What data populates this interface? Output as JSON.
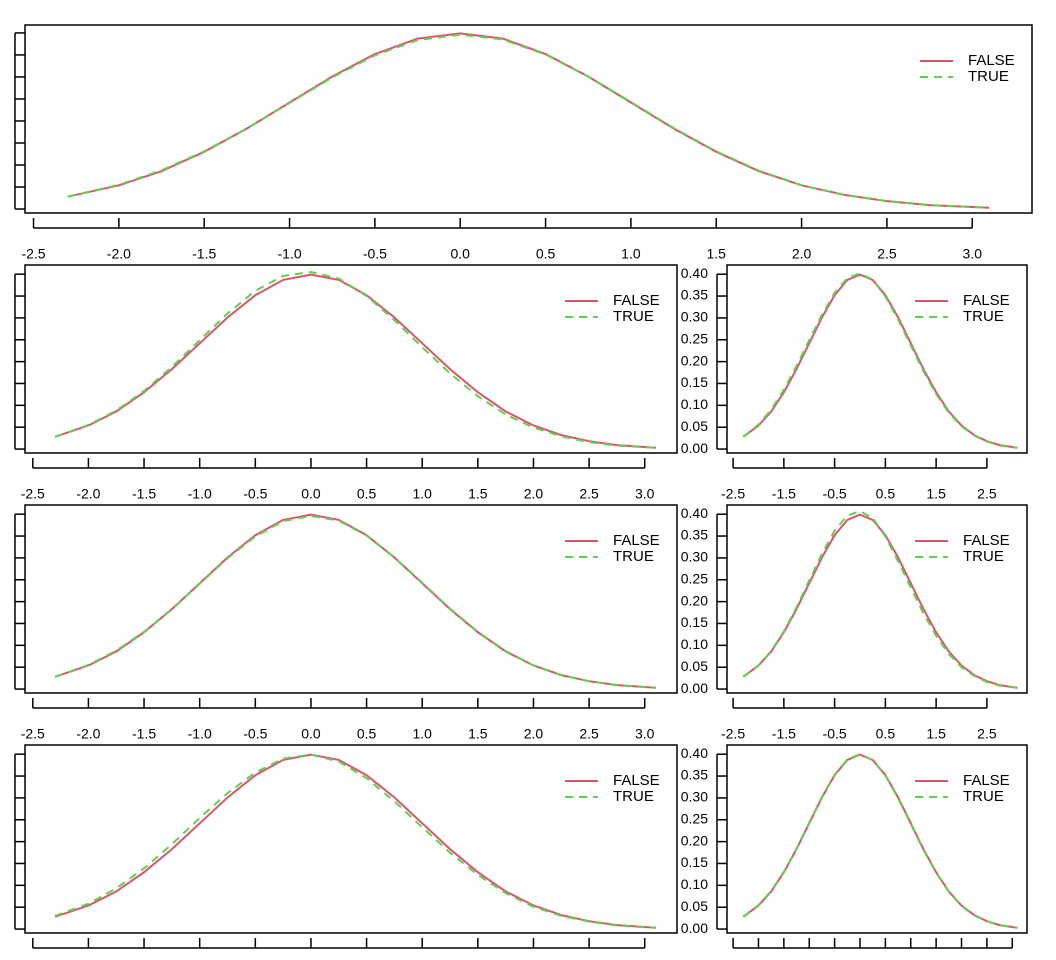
{
  "chart_data": [
    {
      "type": "line",
      "legend": "topright",
      "xlim": [
        -2.55,
        3.35
      ],
      "ylim": [
        -0.009,
        0.418
      ],
      "xticks": [
        -2.5,
        {
          "value": -2,
          "label": "-2.0"
        },
        -1.5,
        {
          "value": -1,
          "label": "-1.0"
        },
        -0.5,
        {
          "value": 0,
          "label": "0.0"
        },
        0.5,
        {
          "value": 1,
          "label": "1.0"
        },
        1.5,
        {
          "value": 2,
          "label": "2.0"
        },
        2.5,
        {
          "value": 3,
          "label": "3.0"
        }
      ],
      "yticks": [
        0,
        0.05,
        0.1,
        0.15,
        0.2,
        0.25,
        0.3,
        0.35,
        0.4
      ],
      "show_xtick_labels": true,
      "show_ytick_labels": false,
      "x": [
        -2.3,
        -2,
        -1.75,
        -1.5,
        -1.25,
        -1,
        -0.75,
        -0.5,
        -0.25,
        0,
        0.25,
        0.5,
        0.75,
        1,
        1.25,
        1.5,
        1.75,
        2,
        2.25,
        2.5,
        2.75,
        3.1
      ],
      "series": [
        {
          "name": "FALSE",
          "color": "#DF536B",
          "dashed": false,
          "values": [
            0.028,
            0.054,
            0.086,
            0.13,
            0.183,
            0.242,
            0.301,
            0.352,
            0.387,
            0.399,
            0.387,
            0.352,
            0.301,
            0.242,
            0.183,
            0.13,
            0.086,
            0.054,
            0.032,
            0.018,
            0.009,
            0.003
          ]
        },
        {
          "name": "TRUE",
          "color": "#61D04F",
          "dashed": true,
          "values": [
            0.028,
            0.055,
            0.088,
            0.131,
            0.183,
            0.241,
            0.299,
            0.349,
            0.384,
            0.396,
            0.385,
            0.351,
            0.301,
            0.243,
            0.184,
            0.131,
            0.087,
            0.054,
            0.032,
            0.018,
            0.009,
            0.003
          ]
        }
      ]
    },
    {
      "type": "line",
      "legend": "topright",
      "xlim": [
        -2.57,
        3.29
      ],
      "ylim": [
        -0.009,
        0.421
      ],
      "xticks": [
        -2.5,
        {
          "value": -2,
          "label": "-2.0"
        },
        -1.5,
        {
          "value": -1,
          "label": "-1.0"
        },
        -0.5,
        {
          "value": 0,
          "label": "0.0"
        },
        0.5,
        {
          "value": 1,
          "label": "1.0"
        },
        1.5,
        {
          "value": 2,
          "label": "2.0"
        },
        2.5,
        {
          "value": 3,
          "label": "3.0"
        }
      ],
      "yticks": [
        0,
        0.05,
        0.1,
        0.15,
        0.2,
        0.25,
        0.3,
        0.35,
        0.4
      ],
      "show_xtick_labels": true,
      "show_ytick_labels": false,
      "x": [
        -2.3,
        -2,
        -1.75,
        -1.5,
        -1.25,
        -1,
        -0.75,
        -0.5,
        -0.25,
        0,
        0.25,
        0.5,
        0.75,
        1,
        1.25,
        1.5,
        1.75,
        2,
        2.25,
        2.5,
        2.75,
        3.1
      ],
      "series": [
        {
          "name": "FALSE",
          "color": "#DF536B",
          "dashed": false,
          "values": [
            0.028,
            0.054,
            0.086,
            0.13,
            0.183,
            0.242,
            0.301,
            0.352,
            0.387,
            0.399,
            0.387,
            0.352,
            0.301,
            0.242,
            0.183,
            0.13,
            0.086,
            0.054,
            0.032,
            0.018,
            0.009,
            0.003
          ]
        },
        {
          "name": "TRUE",
          "color": "#61D04F",
          "dashed": true,
          "values": [
            0.028,
            0.055,
            0.088,
            0.133,
            0.188,
            0.249,
            0.31,
            0.362,
            0.396,
            0.405,
            0.39,
            0.35,
            0.295,
            0.233,
            0.173,
            0.121,
            0.079,
            0.049,
            0.029,
            0.016,
            0.008,
            0.003
          ]
        }
      ]
    },
    {
      "type": "line",
      "legend": "topright",
      "xlim": [
        -2.62,
        3.29
      ],
      "ylim": [
        -0.009,
        0.421
      ],
      "xticks": [
        -2.5,
        -1.5,
        -0.5,
        0.5,
        1.5,
        2.5
      ],
      "yticks": [
        {
          "value": 0,
          "label": "0.00"
        },
        {
          "value": 0.05,
          "label": "0.05"
        },
        {
          "value": 0.1,
          "label": "0.10"
        },
        {
          "value": 0.15,
          "label": "0.15"
        },
        {
          "value": 0.2,
          "label": "0.20"
        },
        {
          "value": 0.25,
          "label": "0.25"
        },
        {
          "value": 0.3,
          "label": "0.30"
        },
        {
          "value": 0.35,
          "label": "0.35"
        },
        {
          "value": 0.4,
          "label": "0.40"
        }
      ],
      "show_xtick_labels": true,
      "show_ytick_labels": true,
      "x": [
        -2.3,
        -2,
        -1.75,
        -1.5,
        -1.25,
        -1,
        -0.75,
        -0.5,
        -0.25,
        0,
        0.25,
        0.5,
        0.75,
        1,
        1.25,
        1.5,
        1.75,
        2,
        2.25,
        2.5,
        2.75,
        3.1
      ],
      "series": [
        {
          "name": "FALSE",
          "color": "#DF536B",
          "dashed": false,
          "values": [
            0.028,
            0.054,
            0.086,
            0.13,
            0.183,
            0.242,
            0.301,
            0.352,
            0.387,
            0.399,
            0.387,
            0.352,
            0.301,
            0.242,
            0.183,
            0.13,
            0.086,
            0.054,
            0.032,
            0.018,
            0.009,
            0.003
          ]
        },
        {
          "name": "TRUE",
          "color": "#61D04F",
          "dashed": true,
          "values": [
            0.028,
            0.056,
            0.09,
            0.136,
            0.19,
            0.249,
            0.307,
            0.357,
            0.391,
            0.402,
            0.387,
            0.349,
            0.296,
            0.237,
            0.178,
            0.126,
            0.083,
            0.052,
            0.031,
            0.017,
            0.008,
            0.003
          ]
        }
      ]
    },
    {
      "type": "line",
      "legend": "topright",
      "xlim": [
        -2.57,
        3.29
      ],
      "ylim": [
        -0.009,
        0.421
      ],
      "xticks": [
        -2.5,
        {
          "value": -2,
          "label": "-2.0"
        },
        -1.5,
        {
          "value": -1,
          "label": "-1.0"
        },
        -0.5,
        {
          "value": 0,
          "label": "0.0"
        },
        0.5,
        {
          "value": 1,
          "label": "1.0"
        },
        1.5,
        {
          "value": 2,
          "label": "2.0"
        },
        2.5,
        {
          "value": 3,
          "label": "3.0"
        }
      ],
      "yticks": [
        0,
        0.05,
        0.1,
        0.15,
        0.2,
        0.25,
        0.3,
        0.35,
        0.4
      ],
      "show_xtick_labels": true,
      "show_ytick_labels": false,
      "x": [
        -2.3,
        -2,
        -1.75,
        -1.5,
        -1.25,
        -1,
        -0.75,
        -0.5,
        -0.25,
        0,
        0.25,
        0.5,
        0.75,
        1,
        1.25,
        1.5,
        1.75,
        2,
        2.25,
        2.5,
        2.75,
        3.1
      ],
      "series": [
        {
          "name": "FALSE",
          "color": "#DF536B",
          "dashed": false,
          "values": [
            0.028,
            0.054,
            0.086,
            0.13,
            0.183,
            0.242,
            0.301,
            0.352,
            0.387,
            0.399,
            0.387,
            0.352,
            0.301,
            0.242,
            0.183,
            0.13,
            0.086,
            0.054,
            0.032,
            0.018,
            0.009,
            0.003
          ]
        },
        {
          "name": "TRUE",
          "color": "#61D04F",
          "dashed": true,
          "values": [
            0.028,
            0.055,
            0.088,
            0.131,
            0.183,
            0.241,
            0.299,
            0.349,
            0.384,
            0.396,
            0.385,
            0.351,
            0.301,
            0.243,
            0.184,
            0.131,
            0.087,
            0.054,
            0.032,
            0.018,
            0.009,
            0.003
          ]
        }
      ]
    },
    {
      "type": "line",
      "legend": "topright",
      "xlim": [
        -2.62,
        3.29
      ],
      "ylim": [
        -0.009,
        0.421
      ],
      "xticks": [
        -2.5,
        -1.5,
        -0.5,
        0.5,
        1.5,
        2.5
      ],
      "yticks": [
        {
          "value": 0,
          "label": "0.00"
        },
        {
          "value": 0.05,
          "label": "0.05"
        },
        {
          "value": 0.1,
          "label": "0.10"
        },
        {
          "value": 0.15,
          "label": "0.15"
        },
        {
          "value": 0.2,
          "label": "0.20"
        },
        {
          "value": 0.25,
          "label": "0.25"
        },
        {
          "value": 0.3,
          "label": "0.30"
        },
        {
          "value": 0.35,
          "label": "0.35"
        },
        {
          "value": 0.4,
          "label": "0.40"
        }
      ],
      "show_xtick_labels": true,
      "show_ytick_labels": true,
      "x": [
        -2.3,
        -2,
        -1.75,
        -1.5,
        -1.25,
        -1,
        -0.75,
        -0.5,
        -0.25,
        0,
        0.25,
        0.5,
        0.75,
        1,
        1.25,
        1.5,
        1.75,
        2,
        2.25,
        2.5,
        2.75,
        3.1
      ],
      "series": [
        {
          "name": "FALSE",
          "color": "#DF536B",
          "dashed": false,
          "values": [
            0.028,
            0.054,
            0.086,
            0.13,
            0.183,
            0.242,
            0.301,
            0.352,
            0.387,
            0.399,
            0.387,
            0.352,
            0.301,
            0.242,
            0.183,
            0.13,
            0.086,
            0.054,
            0.032,
            0.018,
            0.009,
            0.003
          ]
        },
        {
          "name": "TRUE",
          "color": "#61D04F",
          "dashed": true,
          "values": [
            0.028,
            0.054,
            0.087,
            0.132,
            0.187,
            0.248,
            0.309,
            0.362,
            0.397,
            0.407,
            0.391,
            0.349,
            0.292,
            0.232,
            0.173,
            0.122,
            0.08,
            0.05,
            0.03,
            0.016,
            0.008,
            0.003
          ]
        }
      ]
    },
    {
      "type": "line",
      "legend": "topright",
      "xlim": [
        -2.57,
        3.29
      ],
      "ylim": [
        -0.009,
        0.421
      ],
      "xticks": [
        -2.5,
        -2,
        -1.5,
        -1,
        -0.5,
        0,
        0.5,
        1,
        1.5,
        2,
        2.5,
        3
      ],
      "yticks": [
        0,
        0.05,
        0.1,
        0.15,
        0.2,
        0.25,
        0.3,
        0.35,
        0.4
      ],
      "show_xtick_labels": false,
      "show_ytick_labels": false,
      "x": [
        -2.3,
        -2,
        -1.75,
        -1.5,
        -1.25,
        -1,
        -0.75,
        -0.5,
        -0.25,
        0,
        0.25,
        0.5,
        0.75,
        1,
        1.25,
        1.5,
        1.75,
        2,
        2.25,
        2.5,
        2.75,
        3.1
      ],
      "series": [
        {
          "name": "FALSE",
          "color": "#DF536B",
          "dashed": false,
          "values": [
            0.028,
            0.054,
            0.086,
            0.13,
            0.183,
            0.242,
            0.301,
            0.352,
            0.387,
            0.399,
            0.387,
            0.352,
            0.301,
            0.242,
            0.183,
            0.13,
            0.086,
            0.054,
            0.032,
            0.018,
            0.009,
            0.003
          ]
        },
        {
          "name": "TRUE",
          "color": "#61D04F",
          "dashed": true,
          "values": [
            0.03,
            0.058,
            0.093,
            0.139,
            0.194,
            0.254,
            0.311,
            0.358,
            0.39,
            0.399,
            0.383,
            0.345,
            0.292,
            0.233,
            0.175,
            0.124,
            0.082,
            0.051,
            0.03,
            0.017,
            0.008,
            0.003
          ]
        }
      ]
    },
    {
      "type": "line",
      "legend": "topright",
      "xlim": [
        -2.62,
        3.29
      ],
      "ylim": [
        -0.009,
        0.421
      ],
      "xticks": [
        -2.5,
        -2,
        -1.5,
        -1,
        -0.5,
        0,
        0.5,
        1,
        1.5,
        2,
        2.5,
        3
      ],
      "yticks": [
        {
          "value": 0,
          "label": "0.00"
        },
        {
          "value": 0.05,
          "label": "0.05"
        },
        {
          "value": 0.1,
          "label": "0.10"
        },
        {
          "value": 0.15,
          "label": "0.15"
        },
        {
          "value": 0.2,
          "label": "0.20"
        },
        {
          "value": 0.25,
          "label": "0.25"
        },
        {
          "value": 0.3,
          "label": "0.30"
        },
        {
          "value": 0.35,
          "label": "0.35"
        },
        {
          "value": 0.4,
          "label": "0.40"
        }
      ],
      "show_xtick_labels": false,
      "show_ytick_labels": true,
      "x": [
        -2.3,
        -2,
        -1.75,
        -1.5,
        -1.25,
        -1,
        -0.75,
        -0.5,
        -0.25,
        0,
        0.25,
        0.5,
        0.75,
        1,
        1.25,
        1.5,
        1.75,
        2,
        2.25,
        2.5,
        2.75,
        3.1
      ],
      "series": [
        {
          "name": "FALSE",
          "color": "#DF536B",
          "dashed": false,
          "values": [
            0.028,
            0.054,
            0.086,
            0.13,
            0.183,
            0.242,
            0.301,
            0.352,
            0.387,
            0.399,
            0.387,
            0.352,
            0.301,
            0.242,
            0.183,
            0.13,
            0.086,
            0.054,
            0.032,
            0.018,
            0.009,
            0.003
          ]
        },
        {
          "name": "TRUE",
          "color": "#61D04F",
          "dashed": true,
          "values": [
            0.028,
            0.055,
            0.087,
            0.131,
            0.184,
            0.243,
            0.302,
            0.353,
            0.388,
            0.4,
            0.387,
            0.351,
            0.299,
            0.24,
            0.181,
            0.129,
            0.085,
            0.053,
            0.031,
            0.018,
            0.009,
            0.003
          ]
        }
      ]
    }
  ]
}
